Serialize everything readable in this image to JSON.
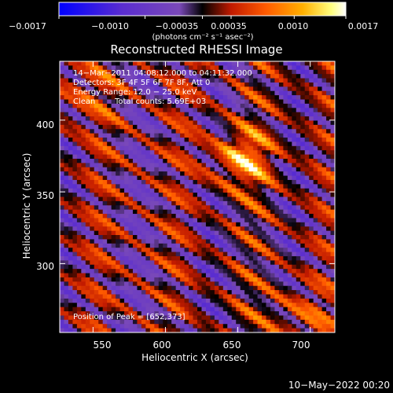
{
  "colorbar": {
    "ticks": [
      "−0.0017",
      "−0.0010",
      "−0.00035",
      "0.00035",
      "0.0010",
      "0.0017"
    ],
    "units": "(photons cm⁻² s⁻¹ asec⁻²)"
  },
  "chart_data": {
    "type": "heatmap",
    "title": "Reconstructed RHESSI Image",
    "xlabel": "Heliocentric X (arcsec)",
    "ylabel": "Heliocentric Y (arcsec)",
    "xlim": [
      527,
      717
    ],
    "ylim": [
      252,
      441
    ],
    "x_ticks": [
      550,
      600,
      650,
      700
    ],
    "y_ticks": [
      300,
      350,
      400
    ],
    "x_tick_labels": [
      "550",
      "600",
      "650",
      "700"
    ],
    "y_tick_labels": [
      "300",
      "350",
      "400"
    ],
    "value_range": [
      -0.0017,
      0.0017
    ],
    "colormap": [
      "#0000ff",
      "#5a2dd0",
      "#7a49b8",
      "#000000",
      "#c11a00",
      "#ff5a00",
      "#ffb000",
      "#ffff80",
      "#ffffff"
    ],
    "annotations": [
      "14−Mar−2011 04:08:12.000 to 04:11:32.000",
      "Detectors: 3F 4F 5F 6F 7F 8F, Att 0",
      "Energy Range: 12.0 − 25.0 keV",
      "Clean",
      "Total counts: 5.69E+03",
      "Position of Peak = [652,373]"
    ],
    "peak": [
      652,
      373
    ]
  },
  "footer": {
    "date": "10−May−2022 00:20"
  }
}
